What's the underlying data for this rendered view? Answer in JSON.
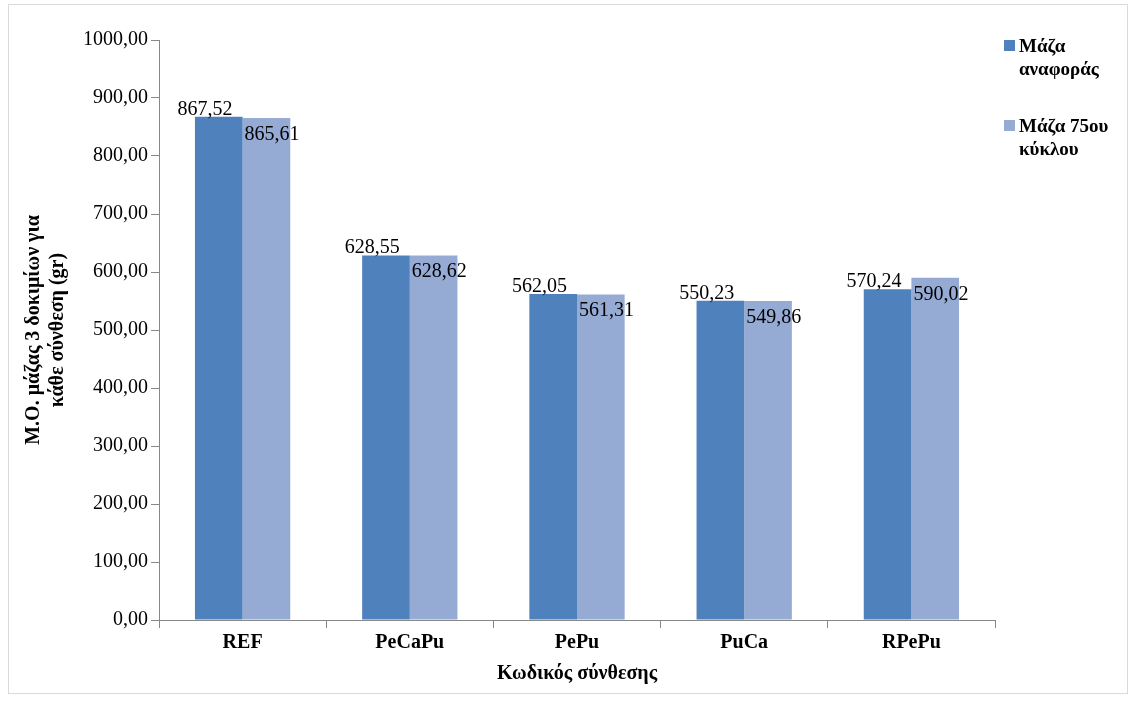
{
  "chart_data": {
    "type": "bar",
    "xlabel": "Κωδικός σύνθεσης",
    "ylabel": "Μ.Ο. μάζας 3 δοκιμίων για κάθε σύνθεση (gr)",
    "categories": [
      "REF",
      "PeCaPu",
      "PePu",
      "PuCa",
      "RPePu"
    ],
    "series": [
      {
        "name": "Μάζα αναφοράς",
        "color": "#4f81bd",
        "values": [
          867.52,
          628.55,
          562.05,
          550.23,
          570.24
        ],
        "value_labels": [
          "867,52",
          "628,55",
          "562,05",
          "550,23",
          "570,24"
        ]
      },
      {
        "name": "Μάζα 75ου κύκλου",
        "color": "#95abd4",
        "values": [
          865.61,
          628.62,
          561.31,
          549.86,
          590.02
        ],
        "value_labels": [
          "865,61",
          "628,62",
          "561,31",
          "549,86",
          "590,02"
        ]
      }
    ],
    "ylim": [
      0,
      1000
    ],
    "yticks": [
      {
        "value": 0,
        "label": "0,00"
      },
      {
        "value": 100,
        "label": "100,00"
      },
      {
        "value": 200,
        "label": "200,00"
      },
      {
        "value": 300,
        "label": "300,00"
      },
      {
        "value": 400,
        "label": "400,00"
      },
      {
        "value": 500,
        "label": "500,00"
      },
      {
        "value": 600,
        "label": "600,00"
      },
      {
        "value": 700,
        "label": "700,00"
      },
      {
        "value": 800,
        "label": "800,00"
      },
      {
        "value": 900,
        "label": "900,00"
      },
      {
        "value": 1000,
        "label": "1000,00"
      }
    ],
    "grid": false,
    "legend": "top right"
  }
}
